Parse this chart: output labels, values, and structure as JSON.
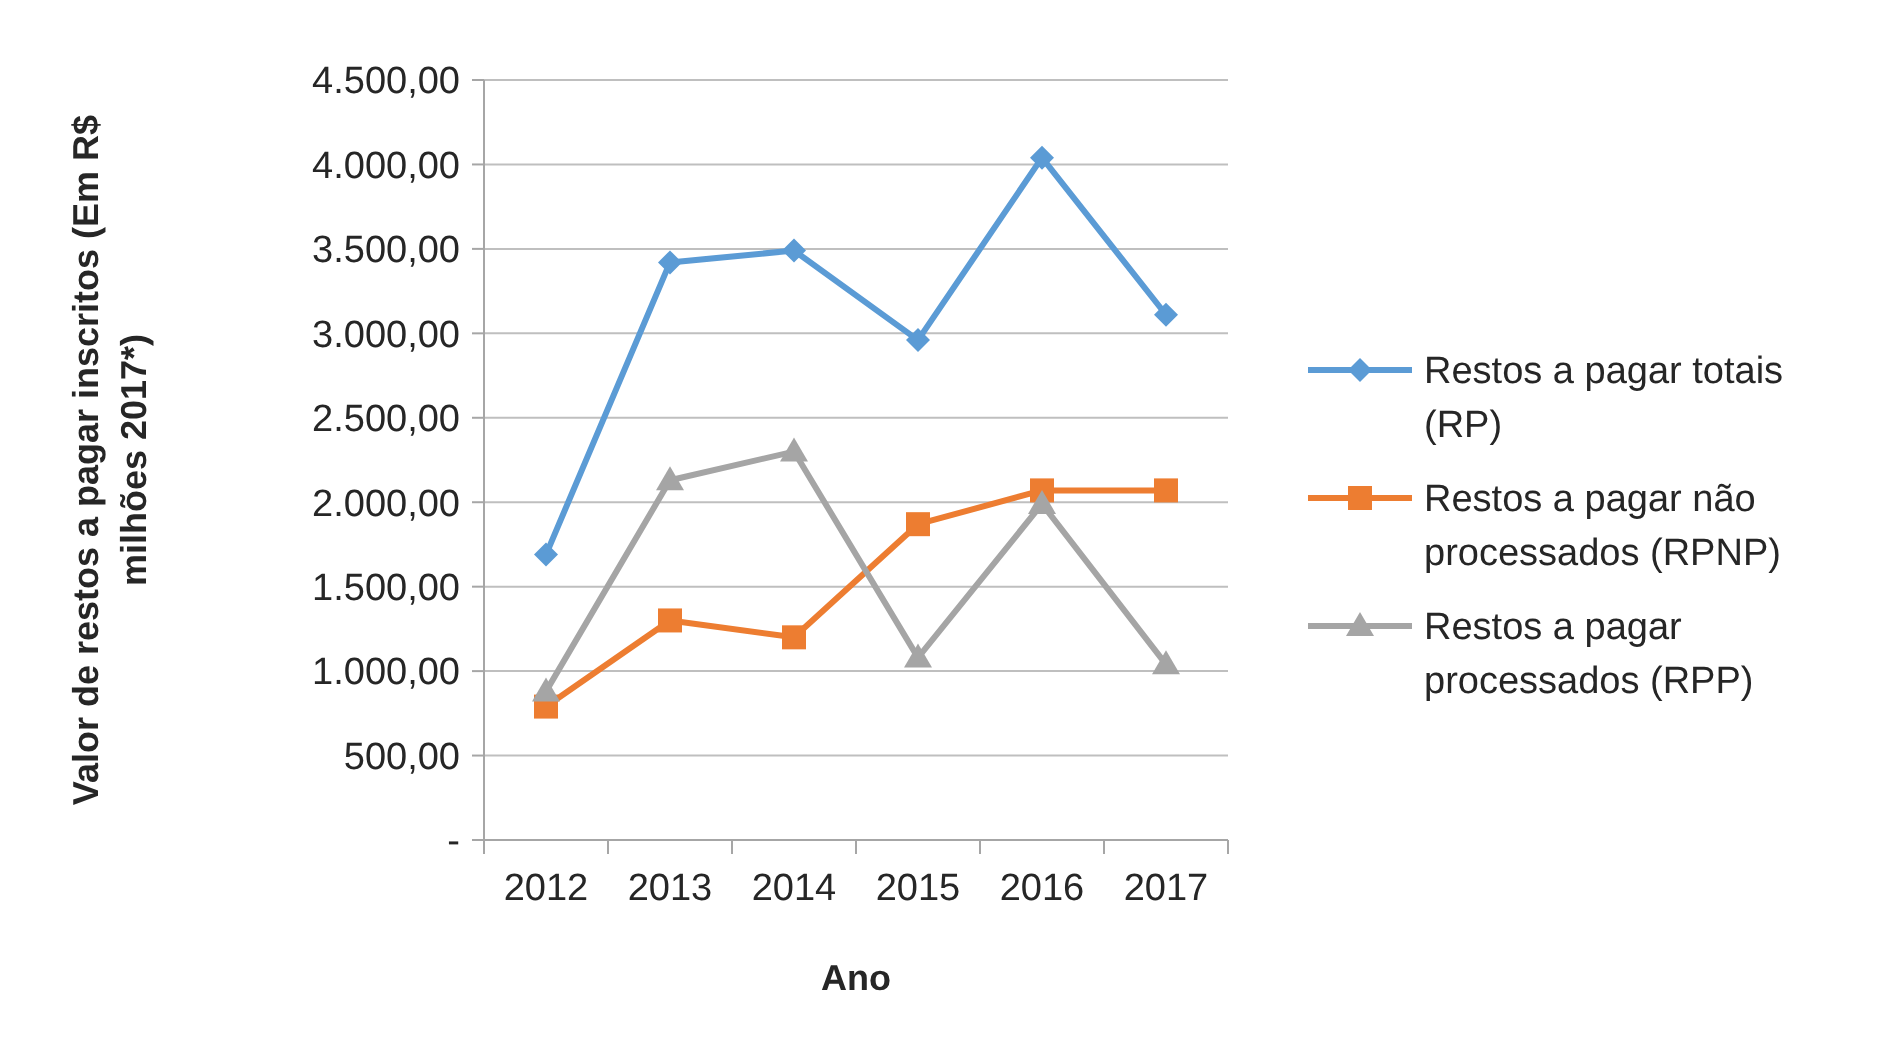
{
  "chart_data": {
    "type": "line",
    "xlabel": "Ano",
    "ylabel": "Valor de restos a pagar inscritos (Em R$ milhões 2017*)",
    "categories": [
      "2012",
      "2013",
      "2014",
      "2015",
      "2016",
      "2017"
    ],
    "series": [
      {
        "name": "Restos a pagar totais (RP)",
        "color": "#5b9bd5",
        "marker": "diamond",
        "values": [
          1690,
          3420,
          3490,
          2960,
          4040,
          3110
        ]
      },
      {
        "name": "Restos a pagar não processados (RPNP)",
        "color": "#ed7d31",
        "marker": "square",
        "values": [
          790,
          1300,
          1200,
          1870,
          2070,
          2070
        ]
      },
      {
        "name": "Restos a pagar processados (RPP)",
        "color": "#a5a5a5",
        "marker": "triangle",
        "values": [
          880,
          2130,
          2300,
          1080,
          1990,
          1040
        ]
      }
    ],
    "ylim": [
      0,
      4500
    ],
    "yticks": [
      {
        "value": 0,
        "label": "-"
      },
      {
        "value": 500,
        "label": "500,00"
      },
      {
        "value": 1000,
        "label": "1.000,00"
      },
      {
        "value": 1500,
        "label": "1.500,00"
      },
      {
        "value": 2000,
        "label": "2.000,00"
      },
      {
        "value": 2500,
        "label": "2.500,00"
      },
      {
        "value": 3000,
        "label": "3.000,00"
      },
      {
        "value": 3500,
        "label": "3.500,00"
      },
      {
        "value": 4000,
        "label": "4.000,00"
      },
      {
        "value": 4500,
        "label": "4.500,00"
      }
    ],
    "grid": "y",
    "legend": "right",
    "line_style": "solid"
  }
}
